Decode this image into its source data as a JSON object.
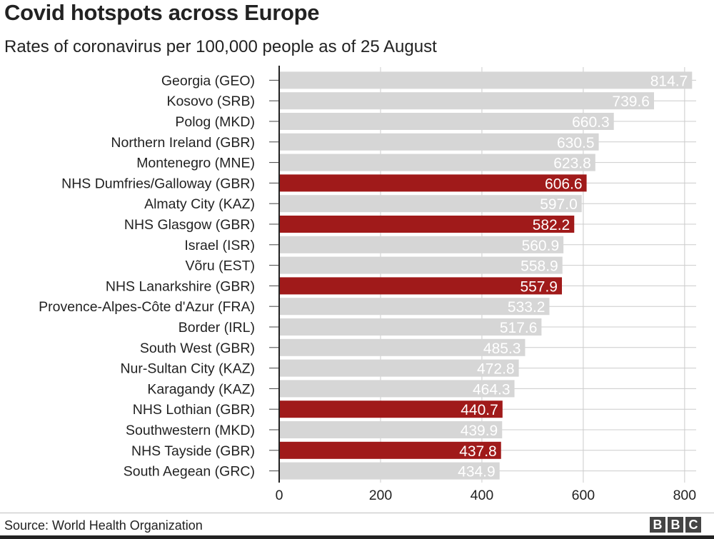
{
  "chart_data": {
    "type": "bar",
    "orientation": "horizontal",
    "title": "Covid hotspots across Europe",
    "subtitle": "Rates of coronavirus per 100,000 people as of 25 August",
    "categories": [
      "Georgia (GEO)",
      "Kosovo (SRB)",
      "Polog (MKD)",
      "Northern Ireland (GBR)",
      "Montenegro (MNE)",
      "NHS Dumfries/Galloway (GBR)",
      "Almaty City (KAZ)",
      "NHS Glasgow (GBR)",
      "Israel (ISR)",
      "Võru (EST)",
      "NHS Lanarkshire (GBR)",
      "Provence-Alpes-Côte d'Azur (FRA)",
      "Border (IRL)",
      "South West (GBR)",
      "Nur-Sultan City (KAZ)",
      "Karagandy (KAZ)",
      "NHS Lothian (GBR)",
      "Southwestern (MKD)",
      "NHS Tayside (GBR)",
      "South Aegean (GRC)"
    ],
    "values": [
      814.7,
      739.6,
      660.3,
      630.5,
      623.8,
      606.6,
      597.0,
      582.2,
      560.9,
      558.9,
      557.9,
      533.2,
      517.6,
      485.3,
      472.8,
      464.3,
      440.7,
      439.9,
      437.8,
      434.9
    ],
    "value_labels": [
      "814.7",
      "739.6",
      "660.3",
      "630.5",
      "623.8",
      "606.6",
      "597.0",
      "582.2",
      "560.9",
      "558.9",
      "557.9",
      "533.2",
      "517.6",
      "485.3",
      "472.8",
      "464.3",
      "440.7",
      "439.9",
      "437.8",
      "434.9"
    ],
    "highlighted": [
      false,
      false,
      false,
      false,
      false,
      true,
      false,
      true,
      false,
      false,
      true,
      false,
      false,
      false,
      false,
      false,
      true,
      false,
      true,
      false
    ],
    "xticks": [
      0,
      200,
      400,
      600,
      800
    ],
    "xlim": [
      0,
      850
    ],
    "grid": true,
    "colors": {
      "default": "#d6d6d6",
      "highlight": "#a01a1a",
      "grid": "#cccccc",
      "axis": "#222222"
    }
  },
  "footer": {
    "source": "Source: World Health Organization",
    "logo_letters": [
      "B",
      "B",
      "C"
    ]
  }
}
